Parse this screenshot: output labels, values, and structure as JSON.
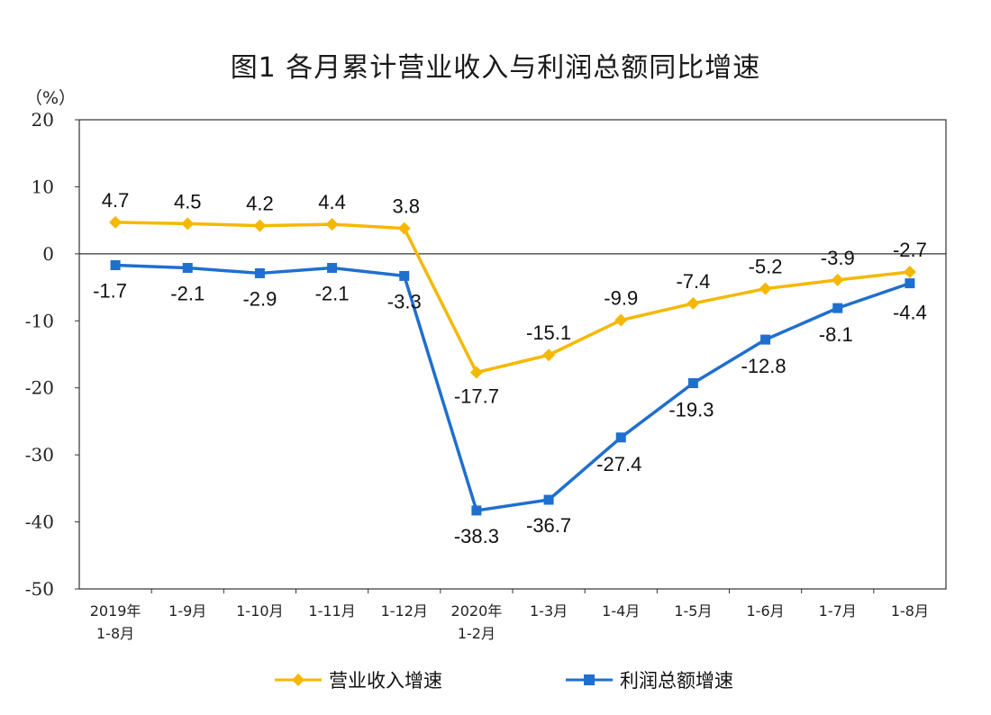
{
  "chart_data": {
    "type": "line",
    "title": "图1  各月累计营业收入与利润总额同比增速",
    "ylabel": "（%）",
    "ylim": [
      -50,
      20
    ],
    "yticks": [
      "20",
      "10",
      "0",
      "-10",
      "-20",
      "-30",
      "-40",
      "-50"
    ],
    "categories": [
      [
        "2019年",
        "1-8月"
      ],
      [
        "1-9月"
      ],
      [
        "1-10月"
      ],
      [
        "1-11月"
      ],
      [
        "1-12月"
      ],
      [
        "2020年",
        "1-2月"
      ],
      [
        "1-3月"
      ],
      [
        "1-4月"
      ],
      [
        "1-5月"
      ],
      [
        "1-6月"
      ],
      [
        "1-7月"
      ],
      [
        "1-8月"
      ]
    ],
    "series": [
      {
        "name": "营业收入增速",
        "color": "#f5b800",
        "marker": "diamond",
        "values": [
          4.7,
          4.5,
          4.2,
          4.4,
          3.8,
          -17.7,
          -15.1,
          -9.9,
          -7.4,
          -5.2,
          -3.9,
          -2.7
        ],
        "labels": [
          "4.7",
          "4.5",
          "4.2",
          "4.4",
          "3.8",
          "-17.7",
          "-15.1",
          "-9.9",
          "-7.4",
          "-5.2",
          "-3.9",
          "-2.7"
        ]
      },
      {
        "name": "利润总额增速",
        "color": "#1f6fce",
        "marker": "square",
        "values": [
          -1.7,
          -2.1,
          -2.9,
          -2.1,
          -3.3,
          -38.3,
          -36.7,
          -27.4,
          -19.3,
          -12.8,
          -8.1,
          -4.4
        ],
        "labels": [
          "-1.7",
          "-2.1",
          "-2.9",
          "-2.1",
          "-3.3",
          "-38.3",
          "-36.7",
          "-27.4",
          "-19.3",
          "-12.8",
          "-8.1",
          "-4.4"
        ]
      }
    ],
    "grid": false,
    "legend_position": "bottom"
  }
}
